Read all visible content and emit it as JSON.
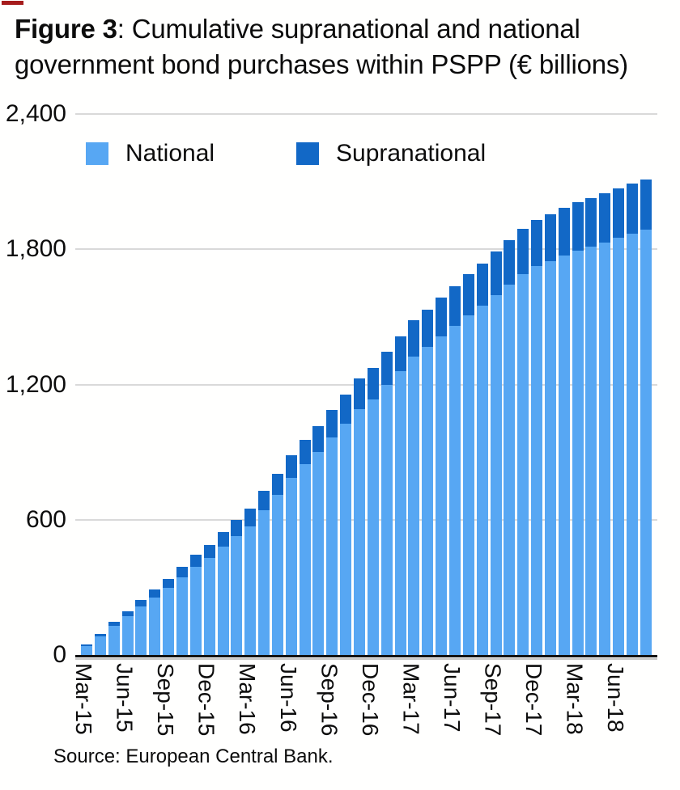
{
  "title": {
    "prefix": "Figure 3",
    "line1_rest": ": Cumulative supranational and national",
    "line2": "government bond purchases within PSPP (€ billions)"
  },
  "legend": {
    "items": [
      {
        "label": "National",
        "color": "#57a7f3"
      },
      {
        "label": "Supranational",
        "color": "#1268c6"
      }
    ]
  },
  "source": "Source: European Central Bank.",
  "chart_data": {
    "type": "bar",
    "stacked": true,
    "title": "Cumulative supranational and national government bond purchases within PSPP (€ billions)",
    "unit": "€ billions",
    "categories": [
      "Mar-15",
      "Apr-15",
      "May-15",
      "Jun-15",
      "Jul-15",
      "Aug-15",
      "Sep-15",
      "Oct-15",
      "Nov-15",
      "Dec-15",
      "Jan-16",
      "Feb-16",
      "Mar-16",
      "Apr-16",
      "May-16",
      "Jun-16",
      "Jul-16",
      "Aug-16",
      "Sep-16",
      "Oct-16",
      "Nov-16",
      "Dec-16",
      "Jan-17",
      "Feb-17",
      "Mar-17",
      "Apr-17",
      "May-17",
      "Jun-17",
      "Jul-17",
      "Aug-17",
      "Sep-17",
      "Oct-17",
      "Nov-17",
      "Dec-17",
      "Jan-18",
      "Feb-18",
      "Mar-18",
      "Apr-18",
      "May-18",
      "Jun-18",
      "Jul-18",
      "Aug-18"
    ],
    "series": [
      {
        "name": "National",
        "color": "#57a7f3",
        "values": [
          41,
          84,
          129,
          171,
          216,
          253,
          298,
          343,
          390,
          432,
          479,
          526,
          571,
          641,
          712,
          784,
          846,
          901,
          964,
          1027,
          1090,
          1134,
          1197,
          1260,
          1323,
          1368,
          1414,
          1459,
          1505,
          1551,
          1597,
          1643,
          1689,
          1726,
          1748,
          1771,
          1793,
          1812,
          1831,
          1850,
          1868,
          1886
        ]
      },
      {
        "name": "Supranational",
        "color": "#1268c6",
        "values": [
          6,
          11,
          18,
          23,
          29,
          35,
          41,
          47,
          53,
          59,
          65,
          72,
          78,
          86,
          94,
          101,
          108,
          114,
          121,
          128,
          135,
          140,
          147,
          154,
          161,
          166,
          171,
          177,
          182,
          187,
          192,
          197,
          202,
          206,
          209,
          211,
          214,
          216,
          218,
          220,
          222,
          224
        ]
      }
    ],
    "x_tick_labels": [
      "Mar-15",
      "Jun-15",
      "Sep-15",
      "Dec-15",
      "Mar-16",
      "Jun-16",
      "Sep-16",
      "Dec-16",
      "Mar-17",
      "Jun-17",
      "Sep-17",
      "Dec-17",
      "Mar-18",
      "Jun-18"
    ],
    "x_tick_every": 3,
    "ylim": [
      0,
      2400
    ],
    "yticks": [
      0,
      600,
      1200,
      1800,
      2400
    ],
    "ytick_labels": [
      "0",
      "600",
      "1,200",
      "1,800",
      "2,400"
    ],
    "grid": true,
    "legend_position": "top-inside"
  }
}
